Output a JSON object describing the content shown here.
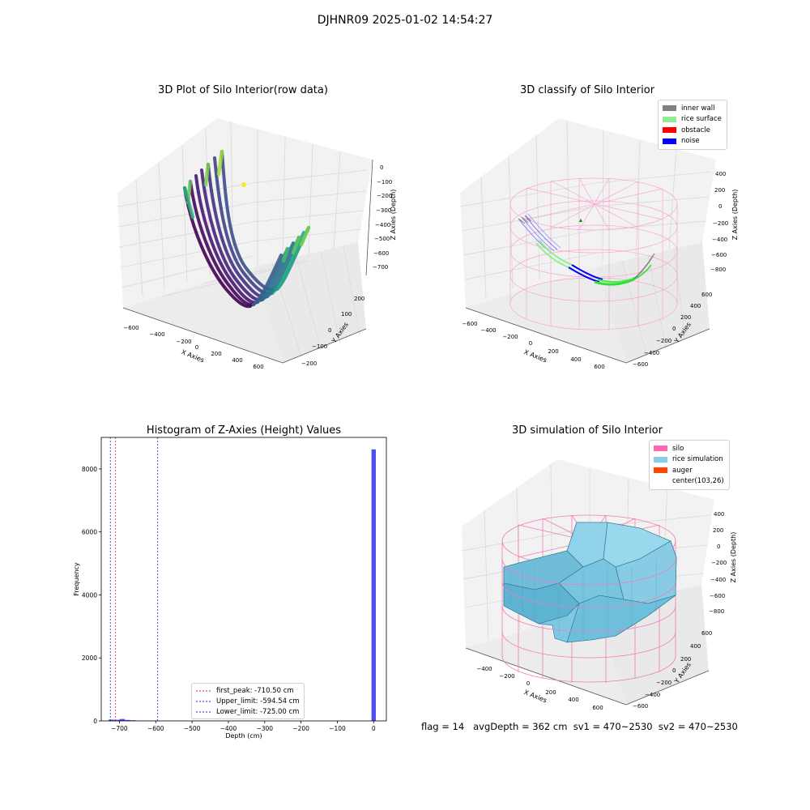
{
  "figure": {
    "suptitle": "DJHNR09 2025-01-02 14:54:27",
    "status_text": "flag = 14   avgDepth = 362 cm  sv1 = 470~2530  sv2 = 470~2530"
  },
  "chart_data": [
    {
      "type": "scatter",
      "title": "3D Plot of Silo Interior(row data)",
      "xlabel": "X Axies",
      "ylabel": "Y Axies",
      "zlabel": "Z Axies (Depth)",
      "xticks": [
        "−600",
        "−400",
        "−200",
        "0",
        "200",
        "400",
        "600"
      ],
      "yticks": [
        "−200",
        "−100",
        "0",
        "100",
        "200"
      ],
      "zticks": [
        "0",
        "−100",
        "−200",
        "−300",
        "−400",
        "−500",
        "−600",
        "−700"
      ],
      "xlim": [
        -700,
        700
      ],
      "ylim": [
        -250,
        250
      ],
      "zlim": [
        -730,
        50
      ],
      "colormap": "viridis",
      "profile_note": "radial scan lines: depth ~0 at |x|≈650, ~-710 near x≈0",
      "scan_lines": 8,
      "outlier_point": {
        "x": -300,
        "y": 100,
        "z": -80,
        "color": "#fde725"
      }
    },
    {
      "type": "scatter",
      "title": "3D classify of Silo Interior",
      "xlabel": "X Axies",
      "ylabel": "Y Axies",
      "zlabel": "Z Axies (Depth)",
      "xticks": [
        "−600",
        "−400",
        "−200",
        "0",
        "200",
        "400",
        "600"
      ],
      "yticks": [
        "−600",
        "−400",
        "−200",
        "0",
        "200",
        "400",
        "600"
      ],
      "zticks": [
        "400",
        "200",
        "0",
        "−200",
        "−400",
        "−600",
        "−800"
      ],
      "xlim": [
        -700,
        700
      ],
      "ylim": [
        -700,
        700
      ],
      "zlim": [
        -900,
        500
      ],
      "legend": [
        {
          "name": "inner wall",
          "color": "#808080"
        },
        {
          "name": "rice surface",
          "color": "#90ee90"
        },
        {
          "name": "obstacle",
          "color": "#ff0000"
        },
        {
          "name": "noise",
          "color": "#0000ff"
        }
      ],
      "silo_wireframe_color": "#f7a1c9"
    },
    {
      "type": "bar",
      "title": "Histogram of Z-Axies (Height) Values",
      "xlabel": "Depth (cm)",
      "ylabel": "Frequency",
      "xlim": [
        -750,
        35
      ],
      "ylim": [
        0,
        9000
      ],
      "xticks": [
        -700,
        -600,
        -500,
        -400,
        -300,
        -200,
        -100,
        0
      ],
      "yticks": [
        0,
        2000,
        4000,
        6000,
        8000
      ],
      "xtick_labels": [
        "−700",
        "−600",
        "−500",
        "−400",
        "−300",
        "−200",
        "−100",
        "0"
      ],
      "ytick_labels": [
        "0",
        "2000",
        "4000",
        "6000",
        "8000"
      ],
      "bar_color": "#5050ee",
      "bins": [
        {
          "x0": -730,
          "x1": -715,
          "count": 40
        },
        {
          "x0": -715,
          "x1": -700,
          "count": 35
        },
        {
          "x0": -700,
          "x1": -685,
          "count": 60
        },
        {
          "x0": -685,
          "x1": -670,
          "count": 30
        },
        {
          "x0": -670,
          "x1": -655,
          "count": 20
        },
        {
          "x0": -655,
          "x1": -600,
          "count": 8
        },
        {
          "x0": -600,
          "x1": -300,
          "count": 5
        },
        {
          "x0": -6,
          "x1": 6,
          "count": 8620
        }
      ],
      "vlines": [
        {
          "x": -710.5,
          "label": "first_peak: -710.50 cm",
          "color": "#cc3333"
        },
        {
          "x": -594.54,
          "label": "Upper_limit: -594.54 cm",
          "color": "#2222cc"
        },
        {
          "x": -725.0,
          "label": "Lower_limit: -725.00 cm",
          "color": "#2222cc"
        }
      ],
      "legend_placement": "lower-center"
    },
    {
      "type": "surface",
      "title": "3D simulation of Silo Interior",
      "xlabel": "X Axies",
      "ylabel": "Y Axies",
      "zlabel": "Z Axies (Depth)",
      "xticks": [
        "−400",
        "−200",
        "0",
        "200",
        "400",
        "600"
      ],
      "yticks": [
        "−600",
        "−400",
        "−200",
        "0",
        "200",
        "400",
        "600"
      ],
      "zticks": [
        "400",
        "200",
        "0",
        "−200",
        "−400",
        "−600",
        "−800"
      ],
      "legend": [
        {
          "name": "silo",
          "color": "#ff69b4"
        },
        {
          "name": "rice simulation",
          "color": "#87ceeb"
        },
        {
          "name": "auger",
          "color": "#ff4500"
        },
        {
          "name": "center(103,26)",
          "color": "none"
        }
      ],
      "surface_color": "#7ec8e3",
      "silo_wireframe_color": "#f27bb6"
    }
  ]
}
